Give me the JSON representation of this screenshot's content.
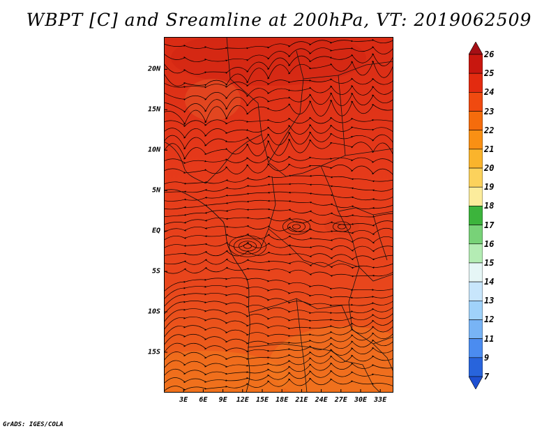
{
  "title": "WBPT [C] and Sreamline at 200hPa, VT: 2019062509",
  "credit": "GrADS: IGES/COLA",
  "map": {
    "lon_range": [
      0,
      35
    ],
    "lat_range": [
      -20,
      24
    ],
    "lat_ticks": [
      {
        "value": 20,
        "label": "20N"
      },
      {
        "value": 15,
        "label": "15N"
      },
      {
        "value": 10,
        "label": "10N"
      },
      {
        "value": 5,
        "label": "5N"
      },
      {
        "value": 0,
        "label": "EQ"
      },
      {
        "value": -5,
        "label": "5S"
      },
      {
        "value": -10,
        "label": "10S"
      },
      {
        "value": -15,
        "label": "15S"
      }
    ],
    "lon_ticks": [
      {
        "value": 3,
        "label": "3E"
      },
      {
        "value": 6,
        "label": "6E"
      },
      {
        "value": 9,
        "label": "9E"
      },
      {
        "value": 12,
        "label": "12E"
      },
      {
        "value": 15,
        "label": "15E"
      },
      {
        "value": 18,
        "label": "18E"
      },
      {
        "value": 21,
        "label": "21E"
      },
      {
        "value": 24,
        "label": "24E"
      },
      {
        "value": 27,
        "label": "27E"
      },
      {
        "value": 30,
        "label": "30E"
      },
      {
        "value": 33,
        "label": "33E"
      }
    ],
    "colors": {
      "dominant": "#e8401c",
      "north": "#dc2e14",
      "south": "#f06418"
    }
  },
  "colorbar": {
    "labels": [
      "26",
      "25",
      "24",
      "23",
      "22",
      "21",
      "20",
      "19",
      "18",
      "17",
      "16",
      "15",
      "14",
      "13",
      "12",
      "11",
      "9",
      "7"
    ],
    "colors": [
      "#a50f15",
      "#c8170f",
      "#e32b10",
      "#f04a10",
      "#f56c0c",
      "#f99014",
      "#fab42c",
      "#fcd25c",
      "#fcec9c",
      "#3cb43c",
      "#78d278",
      "#b4ecb4",
      "#e6f6f6",
      "#c8e6fc",
      "#a0d2fa",
      "#78b4f5",
      "#4b8cf0",
      "#2864dc",
      "#1e50d2"
    ]
  }
}
